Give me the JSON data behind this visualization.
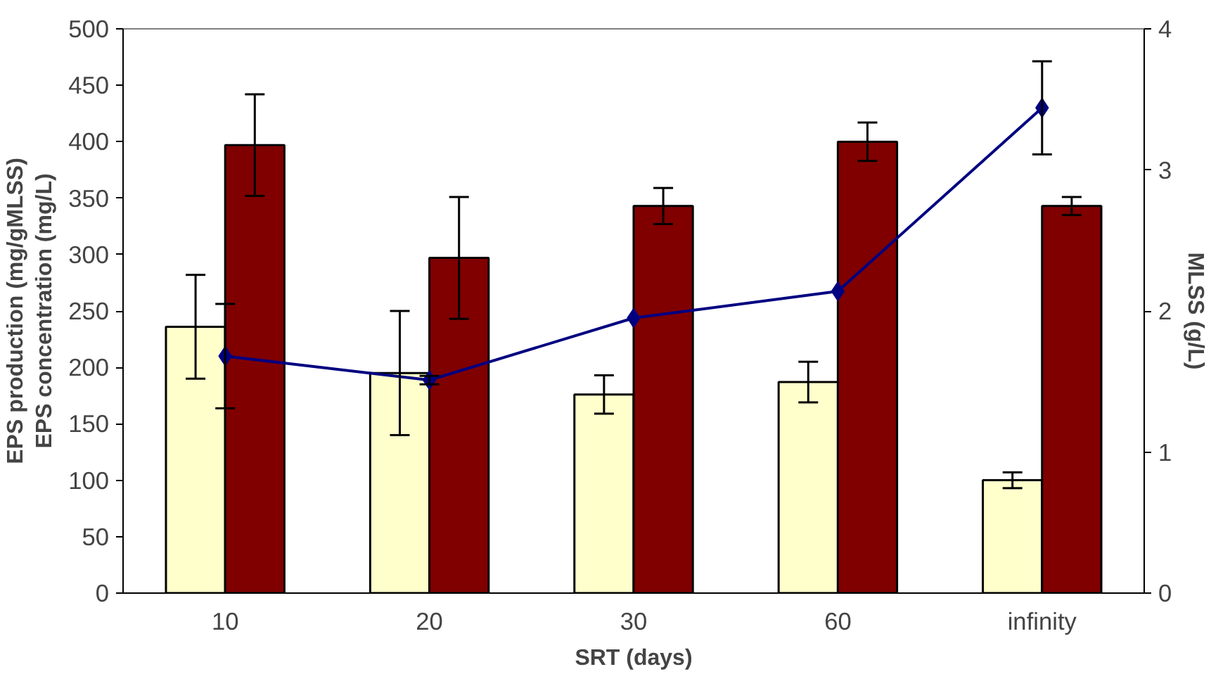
{
  "chart_data": {
    "type": "bar",
    "xlabel": "SRT (days)",
    "ylabel": "EPS production (mg/gMLSS)\nEPS concentration (mg/L)",
    "y2label": "MLSS (g/L)",
    "categories": [
      "10",
      "20",
      "30",
      "60",
      "infinity"
    ],
    "series": [
      {
        "color": "#ffffcc",
        "values": [
          236,
          195,
          176,
          187,
          100
        ],
        "errors": [
          46,
          55,
          17,
          18,
          7
        ]
      },
      {
        "color": "#800000",
        "values": [
          397,
          297,
          343,
          400,
          343
        ],
        "errors": [
          45,
          54,
          16,
          17,
          8
        ]
      },
      {
        "type": "line",
        "axis": "y2",
        "color": "#000080",
        "marker": "diamond",
        "values": [
          1.68,
          1.51,
          1.95,
          2.14,
          3.44
        ],
        "errors": [
          0.37,
          0.03,
          null,
          null,
          0.33
        ]
      }
    ],
    "ylim": [
      0,
      500
    ],
    "yticks": [
      0,
      50,
      100,
      150,
      200,
      250,
      300,
      350,
      400,
      450,
      500
    ],
    "y2lim": [
      0,
      4
    ],
    "y2ticks": [
      0,
      1,
      2,
      3,
      4
    ],
    "grid": false
  }
}
